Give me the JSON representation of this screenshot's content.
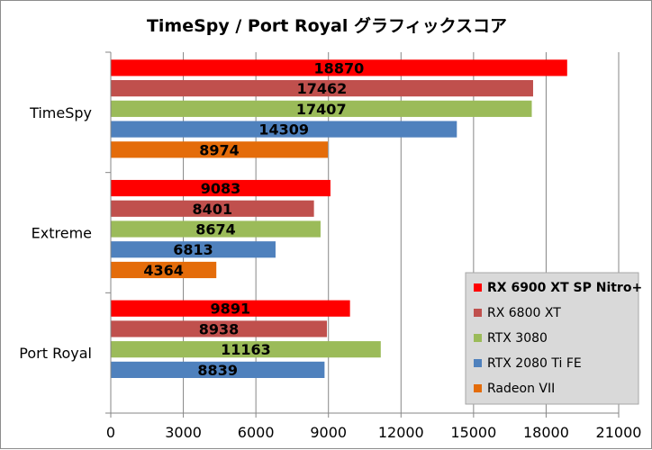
{
  "chart_data": {
    "type": "bar",
    "orientation": "horizontal",
    "title": "TimeSpy / Port Royal グラフィックスコア",
    "xlabel": "",
    "ylabel": "",
    "xlim": [
      0,
      21000
    ],
    "x_ticks": [
      "0",
      "3000",
      "6000",
      "9000",
      "12000",
      "15000",
      "18000",
      "21000"
    ],
    "grid": true,
    "legend_position": "bottom-right",
    "categories": [
      "TimeSpy",
      "Extreme",
      "Port Royal"
    ],
    "series": [
      {
        "name": "RX 6900 XT SP Nitro+",
        "color": "#ff0000",
        "bold": true,
        "values": [
          18870,
          9083,
          9891
        ]
      },
      {
        "name": "RX 6800 XT",
        "color": "#c0504d",
        "bold": false,
        "values": [
          17462,
          8401,
          8938
        ]
      },
      {
        "name": "RTX 3080",
        "color": "#9bbb59",
        "bold": false,
        "values": [
          17407,
          8674,
          11163
        ]
      },
      {
        "name": "RTX 2080 Ti FE",
        "color": "#4f81bd",
        "bold": false,
        "values": [
          14309,
          6813,
          8839
        ]
      },
      {
        "name": "Radeon VII",
        "color": "#e46c0a",
        "bold": false,
        "values": [
          8974,
          4364,
          null
        ]
      }
    ]
  }
}
